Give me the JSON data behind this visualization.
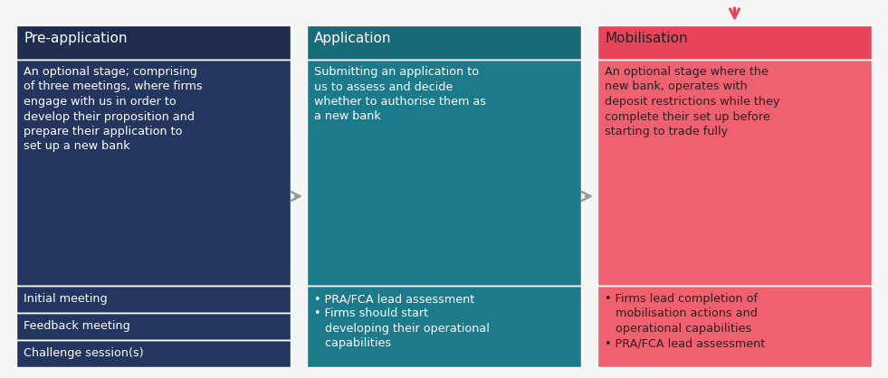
{
  "bg_color": "#f5f5f5",
  "col1_header_color": "#1e2d4f",
  "col1_body_color": "#243660",
  "col2_header_color": "#1a6b7a",
  "col2_body_color": "#1d7a8a",
  "col3_header_color": "#e8445a",
  "col3_body_color": "#ef6070",
  "header_text_color_12": "#ffffff",
  "header_text_color_3": "#2a2020",
  "body_text_color_12": "#ffffff",
  "body_text_color_3": "#2a2020",
  "arrow_color": "#999999",
  "down_arrow_color": "#e8445a",
  "col1_header": "Pre-application",
  "col2_header": "Application",
  "col3_header": "Mobilisation",
  "col1_body": "An optional stage; comprising\nof three meetings, where firms\nengage with us in order to\ndevelop their proposition and\nprepare their application to\nset up a new bank",
  "col2_body": "Submitting an application to\nus to assess and decide\nwhether to authorise them as\na new bank",
  "col3_body": "An optional stage where the\nnew bank, operates with\ndeposit restrictions while they\ncomplete their set up before\nstarting to trade fully",
  "col1_sub_rows": [
    "Initial meeting",
    "Feedback meeting",
    "Challenge session(s)"
  ],
  "col2_sub_text": "• PRA/FCA lead assessment\n• Firms should start\n   developing their operational\n   capabilities",
  "col3_sub_text": "• Firms lead completion of\n   mobilisation actions and\n   operational capabilities\n• PRA/FCA lead assessment",
  "header_fontsize": 11,
  "body_fontsize": 9.2,
  "sub_fontsize": 9.2,
  "fig_width": 9.81,
  "fig_height": 4.18,
  "dpi": 100
}
